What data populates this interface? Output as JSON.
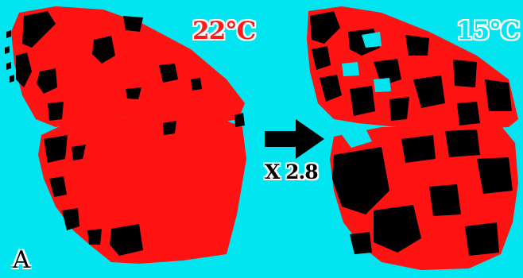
{
  "figure": {
    "left_temperature_label": "22°C",
    "right_temperature_label": "15°C",
    "fold_change_label": "X 2.8",
    "panel_label": "A"
  },
  "colors": {
    "background": "#00e5f0",
    "pigment_red": "#ff1212",
    "pigment_black": "#000000",
    "label_outline": "#ffffff"
  }
}
